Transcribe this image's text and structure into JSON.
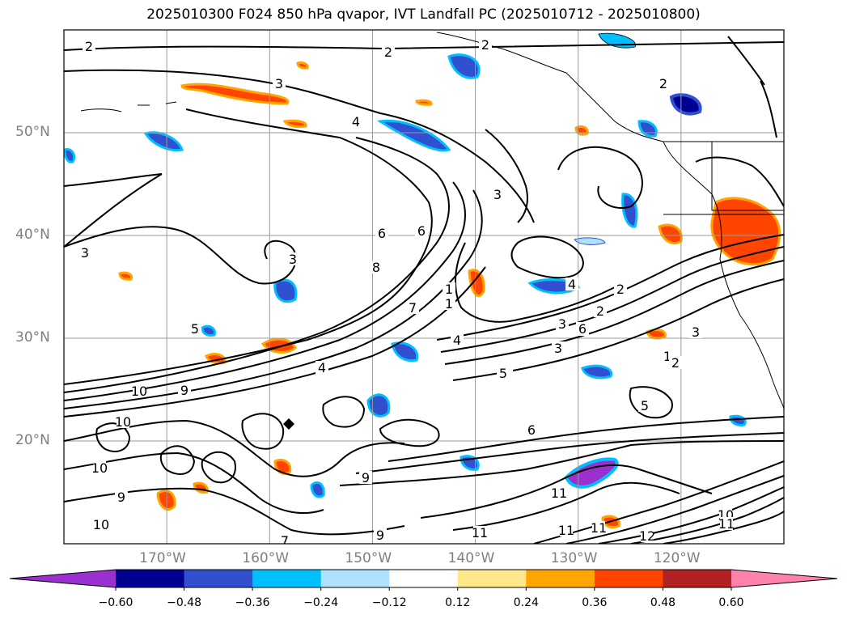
{
  "title": "2025010300 F024 850 hPa qvapor, IVT Landfall PC (2025010712 - 2025010800)",
  "map": {
    "lon_labels": [
      "170°W",
      "160°W",
      "150°W",
      "140°W",
      "130°W",
      "120°W"
    ],
    "lat_labels": [
      "50°N",
      "40°N",
      "30°N",
      "20°N"
    ],
    "contour_labels": [
      "2",
      "2",
      "2",
      "2",
      "3",
      "4",
      "3",
      "3",
      "3",
      "5",
      "6",
      "8",
      "6",
      "7",
      "1",
      "4",
      "3",
      "6",
      "5",
      "4",
      "2",
      "3",
      "2",
      "1",
      "2",
      "5",
      "6",
      "9",
      "9",
      "10",
      "10",
      "10",
      "9",
      "9",
      "7",
      "10",
      "11",
      "11",
      "11",
      "12",
      "10",
      "11",
      "11",
      "1",
      "2",
      "3",
      "4",
      "5",
      "6"
    ]
  },
  "colorbar": {
    "ticks": [
      "−0.60",
      "−0.48",
      "−0.36",
      "−0.24",
      "−0.12",
      "0.12",
      "0.24",
      "0.36",
      "0.48",
      "0.60"
    ],
    "colors": [
      "#9b30d0",
      "#000090",
      "#3050d0",
      "#00bfff",
      "#b0e2ff",
      "#ffffff",
      "#ffe78c",
      "#ffa500",
      "#ff4500",
      "#b22222",
      "#ff82ab"
    ],
    "extend": "both"
  },
  "chart_data": {
    "type": "map",
    "title": "2025010300 F024 850 hPa qvapor, IVT Landfall PC (2025010712 - 2025010800)",
    "projection": "PlateCarree",
    "lon_range": [
      -180,
      -110
    ],
    "lat_range": [
      10,
      60
    ],
    "gridlines": true,
    "shading_variable": "850 hPa qvapor PC",
    "contour_variable": "850 hPa qvapor",
    "shading_levels": [
      -0.6,
      -0.48,
      -0.36,
      -0.24,
      -0.12,
      0.12,
      0.24,
      0.36,
      0.48,
      0.6
    ],
    "colorbar_extend": "both",
    "marker": {
      "lon": -158,
      "lat": 22,
      "symbol": "diamond"
    }
  }
}
